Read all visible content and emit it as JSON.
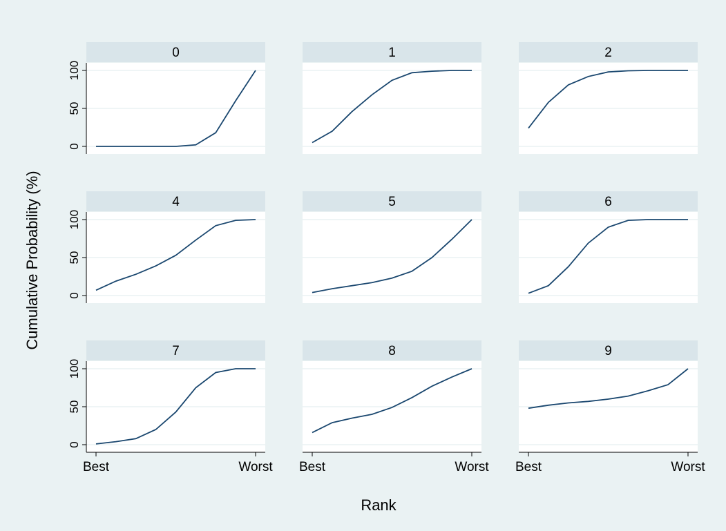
{
  "chart_data": {
    "type": "line",
    "ylabel": "Cumulative Probability (%)",
    "xlabel": "Rank",
    "xtick_labels": [
      "Best",
      "Worst"
    ],
    "yticks": [
      0,
      50,
      100
    ],
    "ylim": [
      -10,
      110
    ],
    "grid": true,
    "line_color": "#1a476f",
    "panel_header_color": "#d9e5ea",
    "panels": [
      {
        "title": "0",
        "values": [
          0,
          0,
          0,
          0,
          0,
          2,
          18,
          60,
          100
        ]
      },
      {
        "title": "1",
        "values": [
          5,
          20,
          46,
          68,
          87,
          97,
          99,
          100,
          100
        ]
      },
      {
        "title": "2",
        "values": [
          24,
          58,
          81,
          92,
          98,
          99.5,
          100,
          100,
          100
        ]
      },
      {
        "title": "4",
        "values": [
          7,
          19,
          28,
          39,
          53,
          73,
          92,
          99,
          100
        ]
      },
      {
        "title": "5",
        "values": [
          4,
          9,
          13,
          17,
          23,
          32,
          50,
          74,
          100
        ]
      },
      {
        "title": "6",
        "values": [
          3,
          13,
          38,
          69,
          90,
          99,
          100,
          100,
          100
        ]
      },
      {
        "title": "7",
        "values": [
          1,
          4,
          8,
          20,
          43,
          75,
          95,
          100,
          100
        ]
      },
      {
        "title": "8",
        "values": [
          16,
          29,
          35,
          40,
          49,
          62,
          77,
          89,
          100
        ]
      },
      {
        "title": "9",
        "values": [
          48,
          52,
          55,
          57,
          60,
          64,
          71,
          79,
          100
        ]
      }
    ]
  }
}
